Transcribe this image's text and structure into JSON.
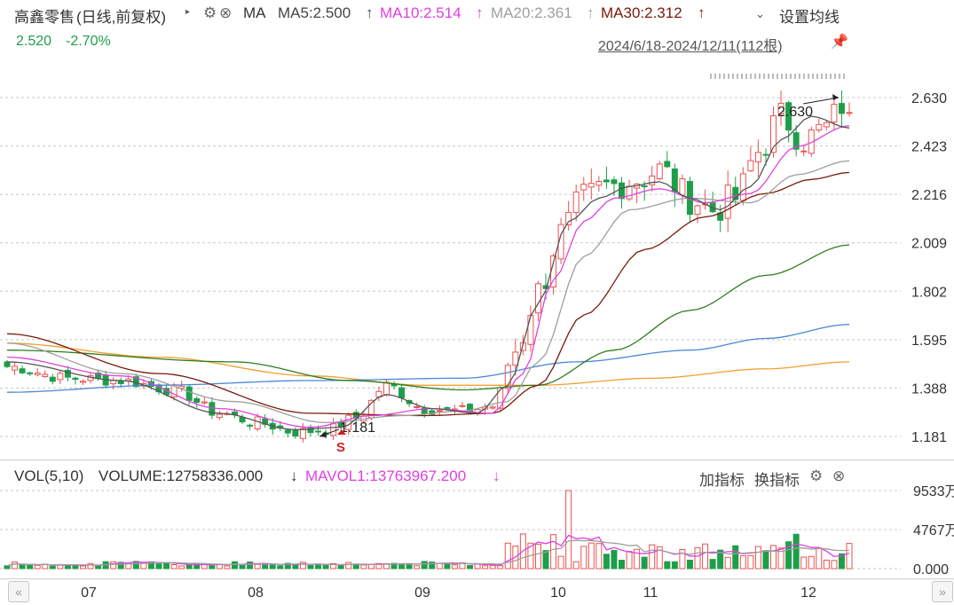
{
  "header": {
    "stock_name": "高鑫零售",
    "period": "(日线,前复权)",
    "indicator": "MA",
    "ma5": "MA5:2.500",
    "ma10": "MA10:2.514",
    "ma20": "MA20:2.361",
    "ma30": "MA30:2.312",
    "settings_label": "设置均线",
    "price": "2.520",
    "change": "-2.70%",
    "date_range": "2024/6/18-2024/12/11(112根)"
  },
  "volume_header": {
    "title": "VOL(5,10)",
    "volume": "VOLUME:12758336.000",
    "mavol1": "MAVOL1:13763967.200",
    "add_indicator": "加指标",
    "switch_indicator": "换指标"
  },
  "colors": {
    "up": "#e8534f",
    "down": "#1e9e4a",
    "ma5": "#555555",
    "ma10": "#e040e0",
    "ma20": "#9e9e9e",
    "ma30": "#7a1a0a",
    "ma60": "#2e7d1e",
    "ma120": "#4a86d8",
    "ma250": "#f0a030"
  },
  "chart_data": {
    "type": "candlestick",
    "price_axis": {
      "ticks": [
        2.63,
        2.423,
        2.216,
        2.009,
        1.802,
        1.595,
        1.388,
        1.181
      ],
      "labels": [
        "2.630",
        "2.423",
        "2.216",
        "2.009",
        "1.802",
        "1.595",
        "1.388",
        "1.181"
      ]
    },
    "volume_axis": {
      "labels": [
        "9533万",
        "4767万",
        "0.000"
      ],
      "values": [
        9533,
        4767,
        0
      ]
    },
    "x_labels": [
      "07",
      "08",
      "09",
      "10",
      "11",
      "12"
    ],
    "annotations": {
      "high_label": "2.630",
      "low_label": "1.181",
      "signal_label": "S"
    },
    "control_points": {
      "close": [
        [
          0,
          1.48
        ],
        [
          8,
          1.43
        ],
        [
          15,
          1.42
        ],
        [
          22,
          1.38
        ],
        [
          28,
          1.28
        ],
        [
          33,
          1.24
        ],
        [
          38,
          1.2
        ],
        [
          42,
          1.21
        ],
        [
          46,
          1.26
        ],
        [
          50,
          1.4
        ],
        [
          55,
          1.3
        ],
        [
          60,
          1.29
        ],
        [
          64,
          1.31
        ],
        [
          67,
          1.55
        ],
        [
          70,
          1.8
        ],
        [
          73,
          2.05
        ],
        [
          76,
          2.2
        ],
        [
          79,
          2.25
        ],
        [
          83,
          2.28
        ],
        [
          86,
          2.32
        ],
        [
          90,
          2.2
        ],
        [
          93,
          2.15
        ],
        [
          96,
          2.2
        ],
        [
          99,
          2.4
        ],
        [
          102,
          2.55
        ],
        [
          105,
          2.45
        ],
        [
          108,
          2.5
        ],
        [
          110,
          2.6
        ],
        [
          111,
          2.52
        ]
      ],
      "ma5": [
        [
          0,
          1.5
        ],
        [
          15,
          1.42
        ],
        [
          28,
          1.28
        ],
        [
          38,
          1.21
        ],
        [
          44,
          1.22
        ],
        [
          50,
          1.36
        ],
        [
          56,
          1.3
        ],
        [
          62,
          1.28
        ],
        [
          66,
          1.4
        ],
        [
          70,
          1.75
        ],
        [
          74,
          2.1
        ],
        [
          78,
          2.2
        ],
        [
          82,
          2.25
        ],
        [
          86,
          2.27
        ],
        [
          90,
          2.2
        ],
        [
          94,
          2.15
        ],
        [
          98,
          2.25
        ],
        [
          102,
          2.45
        ],
        [
          106,
          2.55
        ],
        [
          111,
          2.5
        ]
      ],
      "ma10": [
        [
          0,
          1.52
        ],
        [
          15,
          1.44
        ],
        [
          28,
          1.3
        ],
        [
          40,
          1.22
        ],
        [
          48,
          1.27
        ],
        [
          56,
          1.3
        ],
        [
          64,
          1.28
        ],
        [
          68,
          1.45
        ],
        [
          72,
          1.85
        ],
        [
          76,
          2.1
        ],
        [
          80,
          2.2
        ],
        [
          86,
          2.24
        ],
        [
          92,
          2.18
        ],
        [
          98,
          2.22
        ],
        [
          104,
          2.42
        ],
        [
          111,
          2.51
        ]
      ],
      "ma20": [
        [
          0,
          1.58
        ],
        [
          15,
          1.45
        ],
        [
          30,
          1.33
        ],
        [
          42,
          1.24
        ],
        [
          52,
          1.27
        ],
        [
          60,
          1.29
        ],
        [
          66,
          1.33
        ],
        [
          70,
          1.5
        ],
        [
          76,
          1.95
        ],
        [
          82,
          2.15
        ],
        [
          90,
          2.2
        ],
        [
          98,
          2.18
        ],
        [
          104,
          2.3
        ],
        [
          111,
          2.36
        ]
      ],
      "ma30": [
        [
          0,
          1.62
        ],
        [
          20,
          1.45
        ],
        [
          40,
          1.28
        ],
        [
          55,
          1.27
        ],
        [
          64,
          1.28
        ],
        [
          70,
          1.4
        ],
        [
          76,
          1.7
        ],
        [
          84,
          1.98
        ],
        [
          92,
          2.12
        ],
        [
          100,
          2.22
        ],
        [
          106,
          2.28
        ],
        [
          111,
          2.31
        ]
      ],
      "ma60": [
        [
          0,
          1.55
        ],
        [
          30,
          1.5
        ],
        [
          45,
          1.42
        ],
        [
          60,
          1.38
        ],
        [
          70,
          1.4
        ],
        [
          80,
          1.55
        ],
        [
          90,
          1.72
        ],
        [
          100,
          1.87
        ],
        [
          111,
          2.0
        ]
      ],
      "ma120": [
        [
          0,
          1.37
        ],
        [
          20,
          1.4
        ],
        [
          40,
          1.42
        ],
        [
          60,
          1.43
        ],
        [
          75,
          1.5
        ],
        [
          90,
          1.55
        ],
        [
          100,
          1.6
        ],
        [
          111,
          1.66
        ]
      ],
      "ma250": [
        [
          0,
          1.58
        ],
        [
          20,
          1.52
        ],
        [
          40,
          1.44
        ],
        [
          55,
          1.4
        ],
        [
          70,
          1.4
        ],
        [
          85,
          1.43
        ],
        [
          100,
          1.47
        ],
        [
          111,
          1.5
        ]
      ]
    },
    "bars": 112
  }
}
